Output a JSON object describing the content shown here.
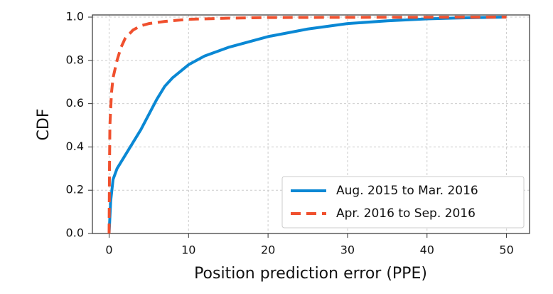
{
  "chart_data": {
    "type": "line",
    "x_label": "Position prediction error (PPE)",
    "y_label": "CDF",
    "series": [
      {
        "name": "Aug. 2015 to Mar. 2016",
        "color": "#0a88d4",
        "dash": false,
        "x": [
          0,
          0.2,
          0.5,
          1,
          2,
          3,
          4,
          5,
          6,
          7,
          8,
          10,
          12,
          15,
          20,
          25,
          30,
          35,
          40,
          45,
          50
        ],
        "values": [
          0,
          0.15,
          0.25,
          0.3,
          0.36,
          0.42,
          0.48,
          0.55,
          0.62,
          0.68,
          0.72,
          0.78,
          0.82,
          0.86,
          0.91,
          0.945,
          0.97,
          0.983,
          0.992,
          0.997,
          1.0
        ]
      },
      {
        "name": "Apr. 2016 to Sep. 2016",
        "color": "#f0502e",
        "dash": true,
        "x": [
          0,
          0.05,
          0.1,
          0.3,
          0.5,
          1,
          1.5,
          2,
          3,
          4,
          5,
          7,
          10,
          15,
          20,
          30,
          50
        ],
        "values": [
          0,
          0.3,
          0.5,
          0.65,
          0.72,
          0.8,
          0.86,
          0.9,
          0.94,
          0.96,
          0.97,
          0.98,
          0.99,
          0.995,
          0.998,
          0.999,
          1.0
        ]
      }
    ],
    "xlim": [
      -2.1,
      52.9
    ],
    "ylim": [
      0,
      1.01
    ],
    "xticks": [
      0,
      10,
      20,
      30,
      40,
      50
    ],
    "yticks": [
      {
        "value": 0,
        "label": "0.0"
      },
      0.2,
      0.4,
      0.6,
      0.8,
      {
        "value": 1,
        "label": "1.0"
      }
    ],
    "grid": true,
    "legend": "lower right"
  }
}
